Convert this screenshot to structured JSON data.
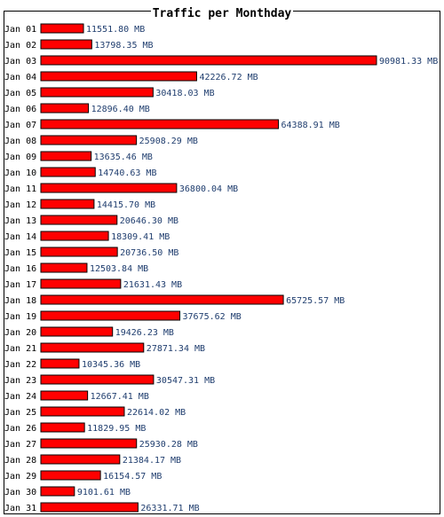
{
  "chart_data": {
    "type": "bar",
    "orientation": "horizontal",
    "title": "Traffic per Monthday",
    "categories": [
      "Jan 01",
      "Jan 02",
      "Jan 03",
      "Jan 04",
      "Jan 05",
      "Jan 06",
      "Jan 07",
      "Jan 08",
      "Jan 09",
      "Jan 10",
      "Jan 11",
      "Jan 12",
      "Jan 13",
      "Jan 14",
      "Jan 15",
      "Jan 16",
      "Jan 17",
      "Jan 18",
      "Jan 19",
      "Jan 20",
      "Jan 21",
      "Jan 22",
      "Jan 23",
      "Jan 24",
      "Jan 25",
      "Jan 26",
      "Jan 27",
      "Jan 28",
      "Jan 29",
      "Jan 30",
      "Jan 31"
    ],
    "values": [
      11551.8,
      13798.35,
      90981.33,
      42226.72,
      30418.03,
      12896.4,
      64388.91,
      25908.29,
      13635.46,
      14740.63,
      36800.04,
      14415.7,
      20646.3,
      18309.41,
      20736.5,
      12503.84,
      21631.43,
      65725.57,
      37675.62,
      19426.23,
      27871.34,
      10345.36,
      30547.31,
      12667.41,
      22614.02,
      11829.95,
      25930.28,
      21384.17,
      16154.57,
      9101.61,
      26331.71
    ],
    "value_labels": [
      "11551.80 MB",
      "13798.35 MB",
      "90981.33 MB",
      "42226.72 MB",
      "30418.03 MB",
      "12896.40 MB",
      "64388.91 MB",
      "25908.29 MB",
      "13635.46 MB",
      "14740.63 MB",
      "36800.04 MB",
      "14415.70 MB",
      "20646.30 MB",
      "18309.41 MB",
      "20736.50 MB",
      "12503.84 MB",
      "21631.43 MB",
      "65725.57 MB",
      "37675.62 MB",
      "19426.23 MB",
      "27871.34 MB",
      "10345.36 MB",
      "30547.31 MB",
      "12667.41 MB",
      "22614.02 MB",
      "11829.95 MB",
      "25930.28 MB",
      "21384.17 MB",
      "16154.57 MB",
      "9101.61 MB",
      "26331.71 MB"
    ],
    "xlim": [
      0,
      90981.33
    ],
    "grid": false,
    "legend": "none",
    "colors": {
      "bar_fill": "#ff0000",
      "bar_border": "#000000",
      "value_text": "#1f3d6e",
      "label_text": "#000000"
    }
  }
}
